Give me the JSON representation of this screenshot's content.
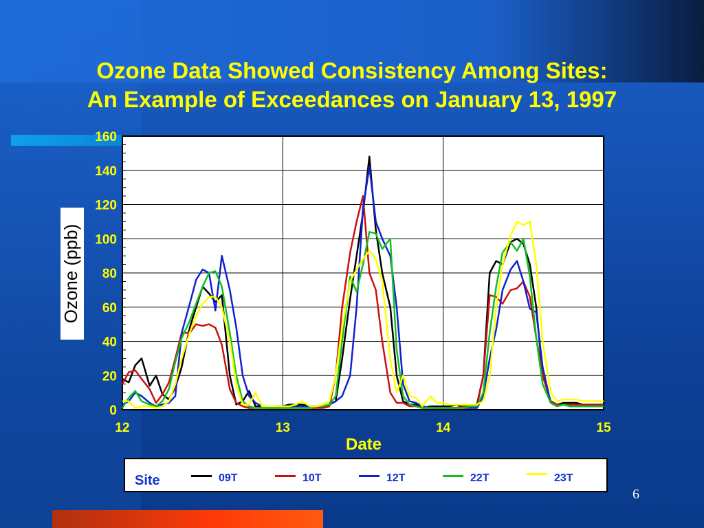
{
  "slide": {
    "title_line1": "Ozone Data Showed Consistency Among Sites:",
    "title_line2": "An Example of Exceedances on January 13, 1997",
    "page_number": "6",
    "colors": {
      "title": "#ffff00",
      "axis_text": "#ffff00",
      "legend_text": "#1030d0"
    }
  },
  "chart_data": {
    "type": "line",
    "xlabel": "Date",
    "ylabel": "Ozone  (ppb)",
    "xlim": [
      12,
      15
    ],
    "ylim": [
      0,
      160
    ],
    "x_ticks": [
      12,
      13,
      14,
      15
    ],
    "y_ticks": [
      0,
      20,
      40,
      60,
      80,
      100,
      120,
      140,
      160
    ],
    "grid": true,
    "legend_title": "Site",
    "legend_position": "bottom",
    "series": [
      {
        "name": "09T",
        "color": "#000000",
        "x": [
          12.0,
          12.04,
          12.08,
          12.12,
          12.17,
          12.21,
          12.25,
          12.29,
          12.33,
          12.37,
          12.42,
          12.46,
          12.5,
          12.54,
          12.58,
          12.62,
          12.67,
          12.71,
          12.75,
          12.79,
          12.83,
          12.87,
          12.92,
          12.96,
          13.0,
          13.04,
          13.08,
          13.12,
          13.17,
          13.21,
          13.25,
          13.29,
          13.33,
          13.37,
          13.42,
          13.46,
          13.5,
          13.54,
          13.58,
          13.62,
          13.67,
          13.71,
          13.75,
          13.79,
          13.83,
          13.87,
          13.92,
          13.96,
          14.0,
          14.04,
          14.08,
          14.12,
          14.17,
          14.21,
          14.25,
          14.29,
          14.33,
          14.37,
          14.42,
          14.46,
          14.5,
          14.54,
          14.58,
          14.62,
          14.67,
          14.71,
          14.75,
          14.79,
          14.83,
          14.87,
          14.92,
          14.96,
          15.0
        ],
        "y": [
          18,
          16,
          26,
          30,
          14,
          20,
          9,
          6,
          13,
          25,
          48,
          60,
          72,
          68,
          63,
          67,
          20,
          3,
          5,
          11,
          2,
          2,
          1,
          2,
          2,
          3,
          3,
          3,
          2,
          2,
          2,
          3,
          5,
          30,
          65,
          90,
          115,
          148,
          105,
          80,
          60,
          20,
          5,
          3,
          3,
          1,
          2,
          2,
          2,
          2,
          3,
          2,
          2,
          3,
          20,
          80,
          87,
          85,
          98,
          100,
          97,
          85,
          60,
          20,
          5,
          3,
          4,
          4,
          4,
          3,
          3,
          3,
          3
        ]
      },
      {
        "name": "10T",
        "color": "#cc1010",
        "x": [
          12.0,
          12.04,
          12.08,
          12.12,
          12.17,
          12.21,
          12.25,
          12.29,
          12.33,
          12.37,
          12.42,
          12.46,
          12.5,
          12.54,
          12.58,
          12.62,
          12.67,
          12.71,
          12.75,
          12.79,
          12.83,
          12.87,
          12.92,
          12.96,
          13.0,
          13.04,
          13.08,
          13.12,
          13.17,
          13.21,
          13.25,
          13.29,
          13.33,
          13.37,
          13.42,
          13.46,
          13.5,
          13.54,
          13.58,
          13.62,
          13.67,
          13.71,
          13.75,
          13.79,
          13.83,
          13.87,
          13.92,
          13.96,
          14.0,
          14.04,
          14.08,
          14.12,
          14.17,
          14.21,
          14.25,
          14.29,
          14.33,
          14.37,
          14.42,
          14.46,
          14.5,
          14.54,
          14.58,
          14.62,
          14.67,
          14.71,
          14.75,
          14.79,
          14.83,
          14.87,
          14.92,
          14.96,
          15.0
        ],
        "y": [
          15,
          22,
          23,
          18,
          12,
          4,
          9,
          16,
          30,
          45,
          45,
          50,
          49,
          50,
          48,
          38,
          12,
          4,
          2,
          1,
          1,
          1,
          1,
          1,
          1,
          1,
          1,
          1,
          1,
          1,
          1,
          2,
          20,
          60,
          92,
          110,
          125,
          80,
          70,
          40,
          10,
          4,
          4,
          2,
          2,
          1,
          1,
          1,
          1,
          1,
          1,
          2,
          2,
          2,
          20,
          67,
          66,
          62,
          70,
          71,
          75,
          66,
          42,
          20,
          5,
          3,
          3,
          3,
          3,
          3,
          3,
          3,
          3
        ]
      },
      {
        "name": "12T",
        "color": "#1020d0",
        "x": [
          12.0,
          12.04,
          12.08,
          12.12,
          12.17,
          12.21,
          12.25,
          12.29,
          12.33,
          12.37,
          12.42,
          12.46,
          12.5,
          12.54,
          12.58,
          12.62,
          12.67,
          12.71,
          12.75,
          12.79,
          12.83,
          12.87,
          12.92,
          12.96,
          13.0,
          13.04,
          13.08,
          13.12,
          13.17,
          13.21,
          13.25,
          13.29,
          13.33,
          13.37,
          13.42,
          13.46,
          13.5,
          13.54,
          13.58,
          13.62,
          13.67,
          13.71,
          13.75,
          13.79,
          13.83,
          13.87,
          13.92,
          13.96,
          14.0,
          14.04,
          14.08,
          14.12,
          14.17,
          14.21,
          14.25,
          14.29,
          14.33,
          14.37,
          14.42,
          14.46,
          14.5,
          14.54,
          14.58,
          14.62,
          14.67,
          14.71,
          14.75,
          14.79,
          14.83,
          14.87,
          14.92,
          14.96,
          15.0
        ],
        "y": [
          3,
          5,
          10,
          8,
          4,
          2,
          3,
          4,
          8,
          45,
          62,
          76,
          82,
          80,
          58,
          90,
          70,
          48,
          20,
          8,
          4,
          2,
          1,
          1,
          2,
          2,
          2,
          2,
          2,
          2,
          2,
          3,
          5,
          8,
          20,
          60,
          118,
          142,
          110,
          100,
          90,
          60,
          15,
          5,
          4,
          2,
          1,
          1,
          1,
          1,
          1,
          1,
          1,
          1,
          8,
          30,
          47,
          70,
          82,
          87,
          75,
          59,
          57,
          25,
          4,
          2,
          3,
          2,
          2,
          2,
          2,
          2,
          2
        ]
      },
      {
        "name": "22T",
        "color": "#10c020",
        "x": [
          12.0,
          12.04,
          12.08,
          12.12,
          12.17,
          12.21,
          12.25,
          12.29,
          12.33,
          12.37,
          12.42,
          12.46,
          12.5,
          12.54,
          12.58,
          12.62,
          12.67,
          12.71,
          12.75,
          12.79,
          12.83,
          12.87,
          12.92,
          12.96,
          13.0,
          13.04,
          13.08,
          13.12,
          13.17,
          13.21,
          13.25,
          13.29,
          13.33,
          13.37,
          13.42,
          13.46,
          13.5,
          13.54,
          13.58,
          13.62,
          13.67,
          13.71,
          13.75,
          13.79,
          13.83,
          13.87,
          13.92,
          13.96,
          14.0,
          14.04,
          14.08,
          14.12,
          14.17,
          14.21,
          14.25,
          14.29,
          14.33,
          14.37,
          14.42,
          14.46,
          14.5,
          14.54,
          14.58,
          14.62,
          14.67,
          14.71,
          14.75,
          14.79,
          14.83,
          14.87,
          14.92,
          14.96,
          15.0
        ],
        "y": [
          1,
          7,
          11,
          5,
          3,
          2,
          5,
          12,
          28,
          42,
          52,
          62,
          72,
          80,
          81,
          72,
          45,
          20,
          5,
          2,
          1,
          1,
          1,
          1,
          1,
          1,
          1,
          1,
          1,
          2,
          2,
          3,
          8,
          40,
          78,
          69,
          85,
          104,
          103,
          94,
          100,
          35,
          8,
          3,
          2,
          1,
          1,
          1,
          1,
          1,
          1,
          1,
          2,
          2,
          10,
          45,
          72,
          92,
          98,
          93,
          100,
          78,
          42,
          15,
          4,
          2,
          3,
          2,
          2,
          2,
          2,
          2,
          2
        ]
      },
      {
        "name": "23T",
        "color": "#ffff00",
        "x": [
          12.0,
          12.04,
          12.08,
          12.12,
          12.17,
          12.21,
          12.25,
          12.29,
          12.33,
          12.37,
          12.42,
          12.46,
          12.5,
          12.54,
          12.58,
          12.62,
          12.67,
          12.71,
          12.75,
          12.79,
          12.83,
          12.87,
          12.92,
          12.96,
          13.0,
          13.04,
          13.08,
          13.12,
          13.17,
          13.21,
          13.25,
          13.29,
          13.33,
          13.37,
          13.42,
          13.46,
          13.5,
          13.54,
          13.58,
          13.62,
          13.67,
          13.71,
          13.75,
          13.79,
          13.83,
          13.87,
          13.92,
          13.96,
          14.0,
          14.04,
          14.08,
          14.12,
          14.17,
          14.21,
          14.25,
          14.29,
          14.33,
          14.37,
          14.42,
          14.46,
          14.5,
          14.54,
          14.58,
          14.62,
          14.67,
          14.71,
          14.75,
          14.79,
          14.83,
          14.87,
          14.92,
          14.96,
          15.0
        ],
        "y": [
          5,
          5,
          1,
          2,
          2,
          1,
          2,
          5,
          15,
          30,
          45,
          55,
          62,
          66,
          66,
          60,
          40,
          15,
          3,
          3,
          10,
          2,
          2,
          2,
          2,
          2,
          3,
          5,
          2,
          2,
          3,
          5,
          20,
          48,
          75,
          82,
          88,
          93,
          88,
          75,
          30,
          10,
          20,
          8,
          7,
          2,
          8,
          4,
          4,
          3,
          3,
          3,
          3,
          3,
          5,
          20,
          60,
          85,
          102,
          110,
          108,
          110,
          85,
          40,
          10,
          5,
          6,
          6,
          6,
          5,
          5,
          5,
          5
        ]
      }
    ]
  }
}
